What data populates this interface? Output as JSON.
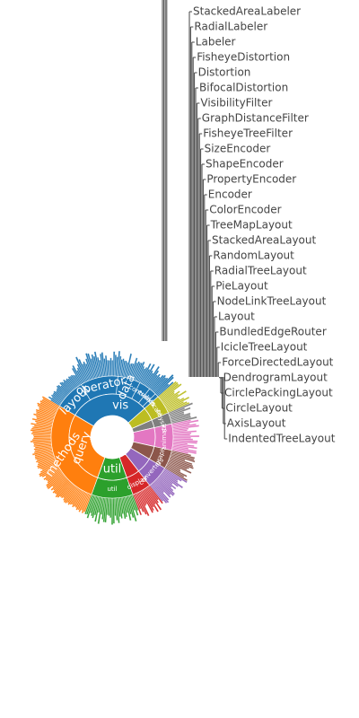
{
  "chart_data": {
    "type": "sunburst",
    "center_label": "vis",
    "inner_ring": [
      {
        "name": "vis",
        "share": 0.3,
        "color": "#1f77b4"
      },
      {
        "name": "scale",
        "share": 0.05,
        "color": "#bcbd22"
      },
      {
        "name": "physics",
        "share": 0.03,
        "color": "#7f7f7f"
      },
      {
        "name": "animate",
        "share": 0.07,
        "color": "#e377c2"
      },
      {
        "name": "analytics",
        "share": 0.05,
        "color": "#8c564b"
      },
      {
        "name": "data",
        "share": 0.06,
        "color": "#9467bd"
      },
      {
        "name": "display",
        "share": 0.05,
        "color": "#d62728"
      },
      {
        "name": "util",
        "share": 0.11,
        "color": "#2ca02c"
      },
      {
        "name": "query",
        "share": 0.28,
        "color": "#ff7f0e"
      }
    ],
    "second_ring": [
      {
        "name": "layout",
        "parent": "vis",
        "share": 0.08,
        "color": "#1f77b4"
      },
      {
        "name": "operator",
        "parent": "vis",
        "share": 0.1,
        "color": "#1f77b4"
      },
      {
        "name": "data",
        "parent": "vis",
        "share": 0.06,
        "color": "#1f77b4"
      },
      {
        "name": "controls",
        "parent": "vis",
        "share": 0.03,
        "color": "#1f77b4"
      },
      {
        "name": "events",
        "parent": "vis",
        "share": 0.02,
        "color": "#1f77b4"
      },
      {
        "name": "axis",
        "parent": "vis",
        "share": 0.01,
        "color": "#1f77b4"
      },
      {
        "name": "scale",
        "parent": "scale",
        "share": 0.05,
        "color": "#bcbd22"
      },
      {
        "name": "physics",
        "parent": "physics",
        "share": 0.03,
        "color": "#7f7f7f"
      },
      {
        "name": "animate",
        "parent": "animate",
        "share": 0.07,
        "color": "#e377c2"
      },
      {
        "name": "graph",
        "parent": "analytics",
        "share": 0.05,
        "color": "#8c564b"
      },
      {
        "name": "converters",
        "parent": "data",
        "share": 0.06,
        "color": "#9467bd"
      },
      {
        "name": "display",
        "parent": "display",
        "share": 0.05,
        "color": "#d62728"
      },
      {
        "name": "util",
        "parent": "util",
        "share": 0.11,
        "color": "#2ca02c"
      },
      {
        "name": "methods",
        "parent": "query",
        "share": 0.28,
        "color": "#ff7f0e"
      }
    ],
    "labeled_leaves": [
      "StackedAreaLabeler",
      "RadialLabeler",
      "Labeler",
      "FisheyeDistortion",
      "Distortion",
      "BifocalDistortion",
      "VisibilityFilter",
      "GraphDistanceFilter",
      "FisheyeTreeFilter",
      "SizeEncoder",
      "ShapeEncoder",
      "PropertyEncoder",
      "Encoder",
      "ColorEncoder",
      "TreeMapLayout",
      "StackedAreaLayout",
      "RandomLayout",
      "RadialTreeLayout",
      "PieLayout",
      "NodeLinkTreeLayout",
      "Layout",
      "BundledEdgeRouter",
      "IcicleTreeLayout",
      "ForceDirectedLayout",
      "DendrogramLayout",
      "CirclePackingLayout",
      "CircleLayout",
      "AxisLayout",
      "IndentedTreeLayout"
    ],
    "legend": "none"
  }
}
